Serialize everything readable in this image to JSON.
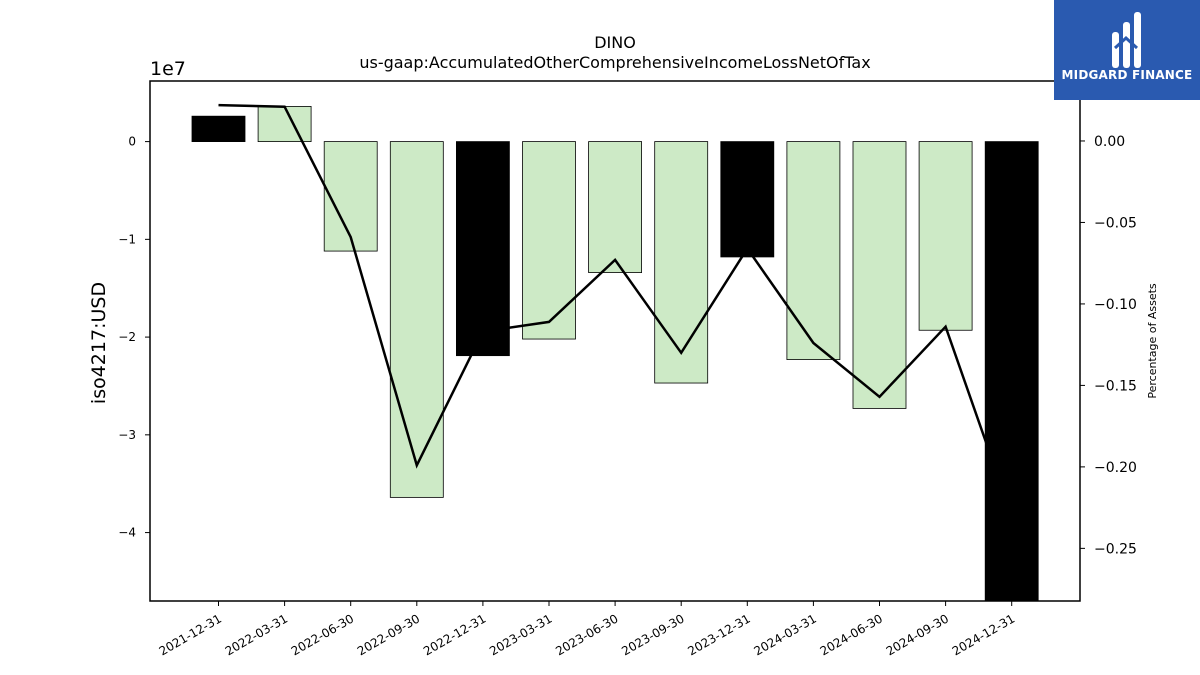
{
  "brand": {
    "name": "MIDGARD FINANCE",
    "bg_color": "#2a5ab0",
    "icon": "midgard-logo-icon"
  },
  "chart_data": {
    "type": "bar",
    "title": "DINO",
    "subtitle": "us-gaap:AccumulatedOtherComprehensiveIncomeLossNetOfTax",
    "ylabel": "iso4217:USD",
    "y2label": "Percentage of Assets",
    "y_scale_label": "1e7",
    "categories": [
      "2021-12-31",
      "2022-03-31",
      "2022-06-30",
      "2022-09-30",
      "2022-12-31",
      "2023-03-31",
      "2023-06-30",
      "2023-09-30",
      "2023-12-31",
      "2024-03-31",
      "2024-06-30",
      "2024-09-30",
      "2024-12-31"
    ],
    "series": [
      {
        "values": [
          2600000,
          3600000,
          -11200000,
          -36400000,
          -21900000,
          -20200000,
          -13400000,
          -24700000,
          -11800000,
          -22300000,
          -27300000,
          -19300000,
          -47000000
        ],
        "highlight": [
          true,
          false,
          false,
          false,
          true,
          false,
          false,
          false,
          true,
          false,
          false,
          false,
          true
        ]
      },
      {
        "values": [
          0.022,
          0.021,
          -0.059,
          -0.199,
          -0.117,
          -0.111,
          -0.073,
          -0.13,
          -0.066,
          -0.124,
          -0.157,
          -0.114,
          -0.23
        ]
      }
    ],
    "ylim": [
      -4.7,
      0.62
    ],
    "y2lim": [
      -0.2823,
      0.0368
    ],
    "yticks": [
      "0",
      "−1",
      "−2",
      "−3",
      "−4"
    ],
    "y2ticks": [
      "0.00",
      "−0.05",
      "−0.10",
      "−0.15",
      "−0.20",
      "−0.25"
    ],
    "colors": {
      "bar": "#cdeac6",
      "bar_highlight": "#000000",
      "line": "#000000",
      "edge": "#000000"
    }
  }
}
